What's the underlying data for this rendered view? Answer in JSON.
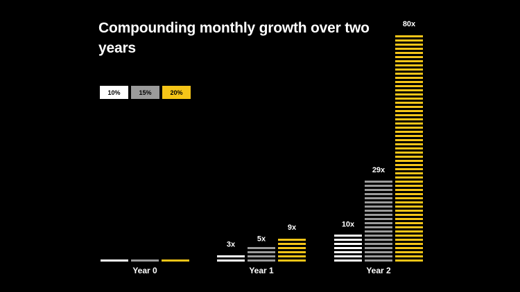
{
  "chart_data": {
    "type": "bar",
    "title": "Compounding monthly growth over two years",
    "categories": [
      "Year 0",
      "Year 1",
      "Year 2"
    ],
    "series": [
      {
        "name": "10%",
        "color": "#FFFFFF",
        "values": [
          1,
          3,
          10
        ],
        "labels": [
          "",
          "3x",
          "10x"
        ]
      },
      {
        "name": "15%",
        "color": "#9B9B9B",
        "values": [
          1,
          5,
          29
        ],
        "labels": [
          "",
          "5x",
          "29x"
        ]
      },
      {
        "name": "20%",
        "color": "#F5C518",
        "values": [
          1,
          9,
          80
        ],
        "labels": [
          "",
          "9x",
          "80x"
        ]
      }
    ],
    "xlabel": "",
    "ylabel": "",
    "ylim": [
      0,
      80
    ],
    "grid": false,
    "legend": "top-left"
  }
}
